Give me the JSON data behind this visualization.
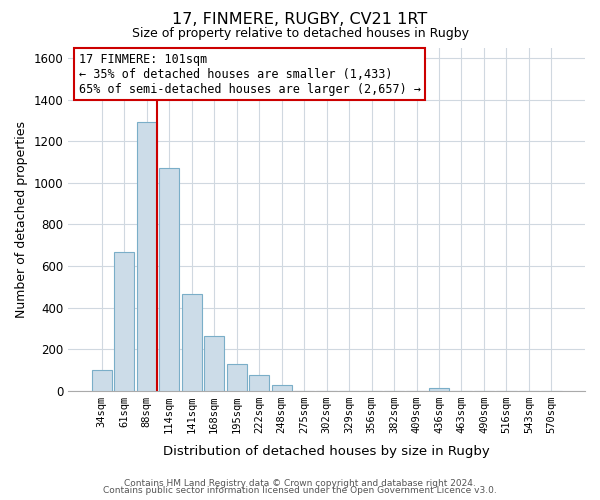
{
  "title": "17, FINMERE, RUGBY, CV21 1RT",
  "subtitle": "Size of property relative to detached houses in Rugby",
  "xlabel": "Distribution of detached houses by size in Rugby",
  "ylabel": "Number of detached properties",
  "bin_labels": [
    "34sqm",
    "61sqm",
    "88sqm",
    "114sqm",
    "141sqm",
    "168sqm",
    "195sqm",
    "222sqm",
    "248sqm",
    "275sqm",
    "302sqm",
    "329sqm",
    "356sqm",
    "382sqm",
    "409sqm",
    "436sqm",
    "463sqm",
    "490sqm",
    "516sqm",
    "543sqm",
    "570sqm"
  ],
  "bar_heights": [
    100,
    670,
    1290,
    1070,
    465,
    265,
    130,
    75,
    30,
    0,
    0,
    0,
    0,
    0,
    0,
    15,
    0,
    0,
    0,
    0,
    0
  ],
  "bar_color": "#ccdce8",
  "bar_edge_color": "#7aaec8",
  "ylim": [
    0,
    1650
  ],
  "yticks": [
    0,
    200,
    400,
    600,
    800,
    1000,
    1200,
    1400,
    1600
  ],
  "property_line_bin": 2,
  "property_line_color": "#cc0000",
  "annotation_title": "17 FINMERE: 101sqm",
  "annotation_line1": "← 35% of detached houses are smaller (1,433)",
  "annotation_line2": "65% of semi-detached houses are larger (2,657) →",
  "annotation_box_color": "#ffffff",
  "annotation_box_edge": "#cc0000",
  "footer1": "Contains HM Land Registry data © Crown copyright and database right 2024.",
  "footer2": "Contains public sector information licensed under the Open Government Licence v3.0.",
  "background_color": "#ffffff",
  "grid_color": "#d0d8e0"
}
